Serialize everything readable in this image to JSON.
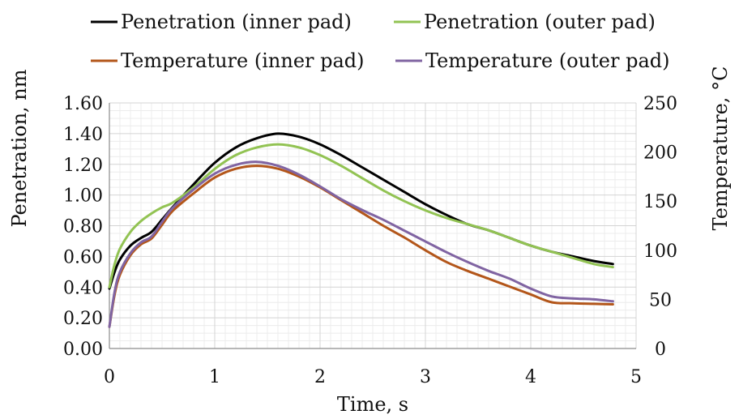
{
  "chart_data": {
    "type": "line",
    "title": "",
    "xlabel": "Time, s",
    "ylabel": "Penetration, nm",
    "y2label": "Temperature, °C",
    "xlim": [
      0,
      5
    ],
    "ylim": [
      0,
      1.6
    ],
    "y2lim": [
      0,
      250
    ],
    "x_ticks": [
      "0",
      "1",
      "2",
      "3",
      "4",
      "5"
    ],
    "y_ticks": [
      "0.00",
      "0.20",
      "0.40",
      "0.60",
      "0.80",
      "1.00",
      "1.20",
      "1.40",
      "1.60"
    ],
    "y2_ticks": [
      "0",
      "50",
      "100",
      "150",
      "200",
      "250"
    ],
    "grid": true,
    "legend_position": "top",
    "series": [
      {
        "name": "Penetration (inner pad)",
        "axis": "left",
        "color": "#000000",
        "points": [
          [
            0,
            0.39
          ],
          [
            0.05,
            0.5
          ],
          [
            0.1,
            0.58
          ],
          [
            0.2,
            0.67
          ],
          [
            0.3,
            0.72
          ],
          [
            0.4,
            0.76
          ],
          [
            0.5,
            0.84
          ],
          [
            0.6,
            0.92
          ],
          [
            0.8,
            1.07
          ],
          [
            1.0,
            1.21
          ],
          [
            1.2,
            1.31
          ],
          [
            1.4,
            1.37
          ],
          [
            1.6,
            1.4
          ],
          [
            1.8,
            1.38
          ],
          [
            2.0,
            1.33
          ],
          [
            2.2,
            1.26
          ],
          [
            2.4,
            1.18
          ],
          [
            2.6,
            1.1
          ],
          [
            2.8,
            1.02
          ],
          [
            3.0,
            0.94
          ],
          [
            3.2,
            0.87
          ],
          [
            3.4,
            0.81
          ],
          [
            3.6,
            0.77
          ],
          [
            3.8,
            0.72
          ],
          [
            4.0,
            0.67
          ],
          [
            4.2,
            0.63
          ],
          [
            4.4,
            0.6
          ],
          [
            4.6,
            0.57
          ],
          [
            4.78,
            0.55
          ]
        ]
      },
      {
        "name": "Penetration (outer pad)",
        "axis": "left",
        "color": "#92c353",
        "points": [
          [
            0,
            0.4
          ],
          [
            0.05,
            0.55
          ],
          [
            0.1,
            0.65
          ],
          [
            0.2,
            0.76
          ],
          [
            0.3,
            0.83
          ],
          [
            0.4,
            0.88
          ],
          [
            0.5,
            0.92
          ],
          [
            0.6,
            0.95
          ],
          [
            0.8,
            1.05
          ],
          [
            1.0,
            1.17
          ],
          [
            1.2,
            1.26
          ],
          [
            1.4,
            1.31
          ],
          [
            1.6,
            1.33
          ],
          [
            1.8,
            1.31
          ],
          [
            2.0,
            1.26
          ],
          [
            2.2,
            1.19
          ],
          [
            2.4,
            1.11
          ],
          [
            2.6,
            1.03
          ],
          [
            2.8,
            0.96
          ],
          [
            3.0,
            0.9
          ],
          [
            3.2,
            0.85
          ],
          [
            3.4,
            0.81
          ],
          [
            3.6,
            0.77
          ],
          [
            3.8,
            0.72
          ],
          [
            4.0,
            0.67
          ],
          [
            4.2,
            0.63
          ],
          [
            4.4,
            0.59
          ],
          [
            4.6,
            0.55
          ],
          [
            4.78,
            0.53
          ]
        ]
      },
      {
        "name": "Temperature (inner pad)",
        "axis": "right",
        "color": "#b3561a",
        "points": [
          [
            0,
            22
          ],
          [
            0.05,
            55
          ],
          [
            0.1,
            75
          ],
          [
            0.2,
            95
          ],
          [
            0.3,
            106
          ],
          [
            0.4,
            112
          ],
          [
            0.5,
            126
          ],
          [
            0.6,
            140
          ],
          [
            0.8,
            158
          ],
          [
            1.0,
            174
          ],
          [
            1.2,
            183
          ],
          [
            1.4,
            186
          ],
          [
            1.6,
            183
          ],
          [
            1.8,
            175
          ],
          [
            2.0,
            164
          ],
          [
            2.2,
            151
          ],
          [
            2.4,
            138
          ],
          [
            2.6,
            125
          ],
          [
            2.8,
            113
          ],
          [
            3.0,
            100
          ],
          [
            3.2,
            88
          ],
          [
            3.4,
            79
          ],
          [
            3.6,
            71
          ],
          [
            3.8,
            63
          ],
          [
            4.0,
            55
          ],
          [
            4.2,
            47
          ],
          [
            4.4,
            46
          ],
          [
            4.6,
            45.5
          ],
          [
            4.78,
            45
          ]
        ]
      },
      {
        "name": "Temperature (outer pad)",
        "axis": "right",
        "color": "#8064a2",
        "points": [
          [
            0,
            22
          ],
          [
            0.05,
            58
          ],
          [
            0.1,
            78
          ],
          [
            0.2,
            97
          ],
          [
            0.3,
            108
          ],
          [
            0.4,
            114
          ],
          [
            0.5,
            129
          ],
          [
            0.6,
            143
          ],
          [
            0.8,
            162
          ],
          [
            1.0,
            178
          ],
          [
            1.2,
            187
          ],
          [
            1.4,
            190
          ],
          [
            1.6,
            186
          ],
          [
            1.8,
            177
          ],
          [
            2.0,
            165
          ],
          [
            2.2,
            152
          ],
          [
            2.4,
            141
          ],
          [
            2.6,
            131
          ],
          [
            2.8,
            120
          ],
          [
            3.0,
            109
          ],
          [
            3.2,
            98
          ],
          [
            3.4,
            88
          ],
          [
            3.6,
            79
          ],
          [
            3.8,
            71
          ],
          [
            4.0,
            61
          ],
          [
            4.2,
            53
          ],
          [
            4.4,
            51
          ],
          [
            4.6,
            50
          ],
          [
            4.78,
            48
          ]
        ]
      }
    ]
  }
}
